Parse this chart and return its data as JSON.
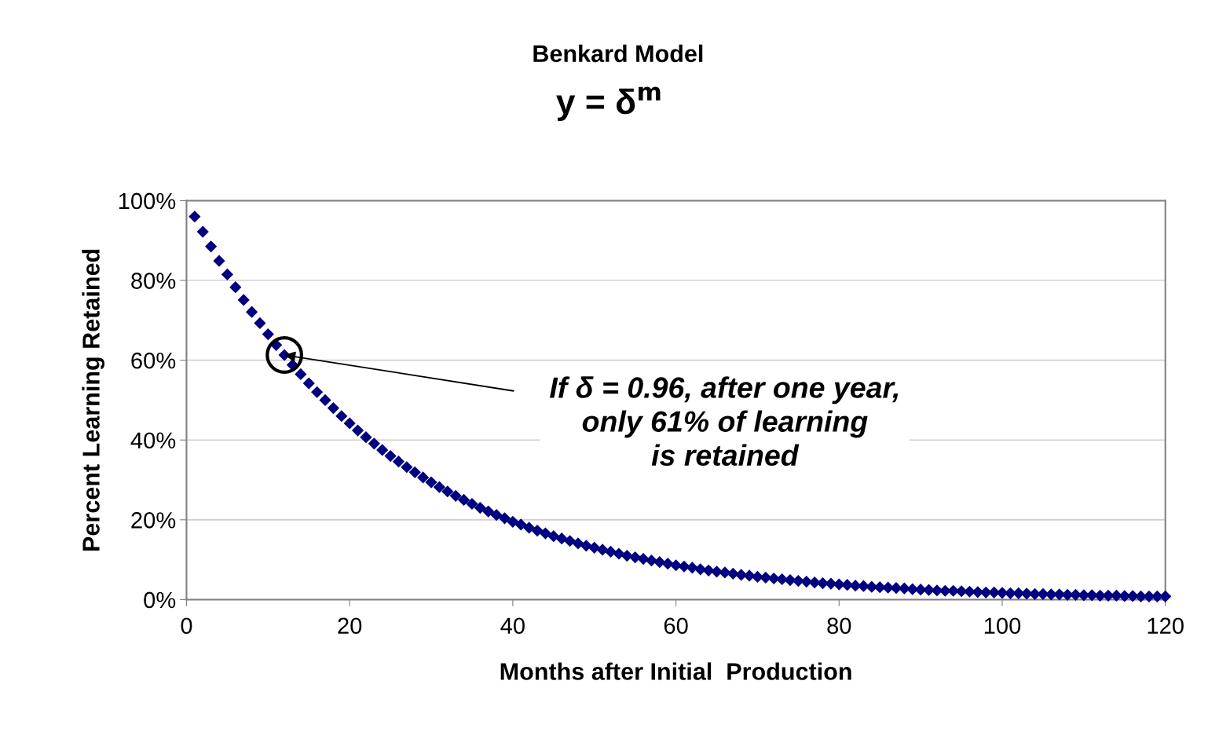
{
  "chart_data": {
    "type": "scatter",
    "title": "Benkard Model",
    "subtitle": "y = δ$^{m}$",
    "xlabel": "Months after Initial  Production",
    "ylabel": "Percent Learning Retained",
    "x": [
      1,
      2,
      3,
      4,
      5,
      6,
      7,
      8,
      9,
      10,
      11,
      12,
      13,
      14,
      15,
      16,
      17,
      18,
      19,
      20,
      21,
      22,
      23,
      24,
      25,
      26,
      27,
      28,
      29,
      30,
      31,
      32,
      33,
      34,
      35,
      36,
      37,
      38,
      39,
      40,
      41,
      42,
      43,
      44,
      45,
      46,
      47,
      48,
      49,
      50,
      51,
      52,
      53,
      54,
      55,
      56,
      57,
      58,
      59,
      60,
      61,
      62,
      63,
      64,
      65,
      66,
      67,
      68,
      69,
      70,
      71,
      72,
      73,
      74,
      75,
      76,
      77,
      78,
      79,
      80,
      81,
      82,
      83,
      84,
      85,
      86,
      87,
      88,
      89,
      90,
      91,
      92,
      93,
      94,
      95,
      96,
      97,
      98,
      99,
      100,
      101,
      102,
      103,
      104,
      105,
      106,
      107,
      108,
      109,
      110,
      111,
      112,
      113,
      114,
      115,
      116,
      117,
      118,
      119,
      120
    ],
    "series": [
      {
        "color": "#000080",
        "values": [
          96.0,
          92.2,
          88.5,
          84.9,
          81.5,
          78.3,
          75.1,
          72.1,
          69.3,
          66.5,
          63.8,
          61.3,
          58.8,
          56.5,
          54.2,
          52.0,
          50.0,
          48.0,
          46.0,
          44.2,
          42.4,
          40.7,
          39.1,
          37.5,
          36.0,
          34.6,
          33.2,
          31.9,
          30.6,
          29.4,
          28.2,
          27.1,
          26.0,
          25.0,
          24.0,
          23.0,
          22.1,
          21.2,
          20.4,
          19.5,
          18.8,
          18.0,
          17.3,
          16.6,
          15.9,
          15.3,
          14.7,
          14.1,
          13.5,
          13.0,
          12.5,
          12.0,
          11.5,
          11.0,
          10.6,
          10.2,
          9.8,
          9.4,
          9.0,
          8.6,
          8.3,
          8.0,
          7.6,
          7.3,
          7.0,
          6.8,
          6.5,
          6.2,
          6.0,
          5.7,
          5.5,
          5.3,
          5.1,
          4.9,
          4.7,
          4.5,
          4.3,
          4.1,
          4.0,
          3.8,
          3.7,
          3.5,
          3.4,
          3.2,
          3.1,
          3.0,
          2.9,
          2.8,
          2.6,
          2.5,
          2.4,
          2.3,
          2.2,
          2.2,
          2.1,
          2.0,
          1.9,
          1.8,
          1.8,
          1.7,
          1.6,
          1.6,
          1.5,
          1.4,
          1.4,
          1.3,
          1.3,
          1.2,
          1.2,
          1.1,
          1.1,
          1.0,
          1.0,
          1.0,
          0.9,
          0.9,
          0.8,
          0.8,
          0.8,
          0.8
        ]
      }
    ],
    "xlim": [
      0,
      120
    ],
    "xticks": [
      0,
      20,
      40,
      60,
      80,
      100,
      120
    ],
    "ylim": [
      0,
      100
    ],
    "yticks": [
      {
        "value": 0,
        "label": "0%"
      },
      {
        "value": 20,
        "label": "20%"
      },
      {
        "value": 40,
        "label": "40%"
      },
      {
        "value": 60,
        "label": "60%"
      },
      {
        "value": 80,
        "label": "80%"
      },
      {
        "value": 100,
        "label": "100%"
      }
    ],
    "grid": "y",
    "marker": "diamond",
    "legend": false,
    "annotations": [
      {
        "text": "If δ = 0.96, after one year,\nonly 61% of learning\nis retained",
        "x": 12,
        "y": 61.3
      }
    ]
  }
}
